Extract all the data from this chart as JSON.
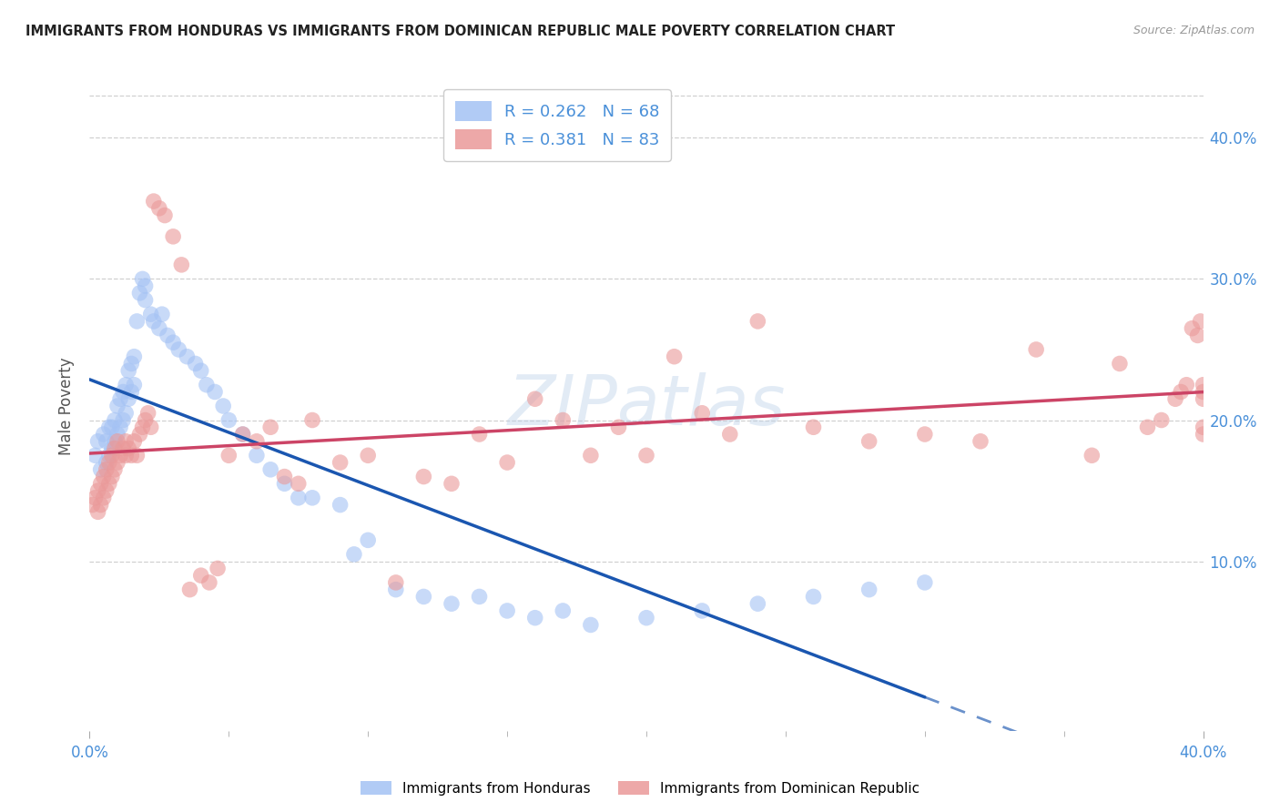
{
  "title": "IMMIGRANTS FROM HONDURAS VS IMMIGRANTS FROM DOMINICAN REPUBLIC MALE POVERTY CORRELATION CHART",
  "source": "Source: ZipAtlas.com",
  "ylabel": "Male Poverty",
  "watermark": "ZIPatlas",
  "xlim": [
    0.0,
    0.4
  ],
  "ylim": [
    -0.02,
    0.44
  ],
  "yticks": [
    0.1,
    0.2,
    0.3,
    0.4
  ],
  "ytick_labels": [
    "10.0%",
    "20.0%",
    "30.0%",
    "40.0%"
  ],
  "background_color": "#ffffff",
  "grid_color": "#d0d0d0",
  "tick_color": "#4a90d9",
  "honduras_color": "#a4c2f4",
  "dominican_color": "#ea9999",
  "trendline_honduras_color": "#1a56b0",
  "trendline_dominican_color": "#cc4466",
  "honduras_scatter": {
    "x": [
      0.002,
      0.003,
      0.004,
      0.005,
      0.006,
      0.006,
      0.007,
      0.007,
      0.008,
      0.008,
      0.009,
      0.009,
      0.01,
      0.01,
      0.011,
      0.011,
      0.012,
      0.012,
      0.013,
      0.013,
      0.014,
      0.014,
      0.015,
      0.015,
      0.016,
      0.016,
      0.017,
      0.018,
      0.019,
      0.02,
      0.02,
      0.022,
      0.023,
      0.025,
      0.026,
      0.028,
      0.03,
      0.032,
      0.035,
      0.038,
      0.04,
      0.042,
      0.045,
      0.048,
      0.05,
      0.055,
      0.06,
      0.065,
      0.07,
      0.075,
      0.08,
      0.09,
      0.095,
      0.1,
      0.11,
      0.12,
      0.13,
      0.14,
      0.15,
      0.16,
      0.17,
      0.18,
      0.2,
      0.22,
      0.24,
      0.26,
      0.28,
      0.3
    ],
    "y": [
      0.175,
      0.185,
      0.165,
      0.19,
      0.17,
      0.185,
      0.175,
      0.195,
      0.18,
      0.195,
      0.185,
      0.2,
      0.19,
      0.21,
      0.195,
      0.215,
      0.2,
      0.22,
      0.205,
      0.225,
      0.215,
      0.235,
      0.22,
      0.24,
      0.225,
      0.245,
      0.27,
      0.29,
      0.3,
      0.295,
      0.285,
      0.275,
      0.27,
      0.265,
      0.275,
      0.26,
      0.255,
      0.25,
      0.245,
      0.24,
      0.235,
      0.225,
      0.22,
      0.21,
      0.2,
      0.19,
      0.175,
      0.165,
      0.155,
      0.145,
      0.145,
      0.14,
      0.105,
      0.115,
      0.08,
      0.075,
      0.07,
      0.075,
      0.065,
      0.06,
      0.065,
      0.055,
      0.06,
      0.065,
      0.07,
      0.075,
      0.08,
      0.085
    ]
  },
  "dominican_scatter": {
    "x": [
      0.001,
      0.002,
      0.003,
      0.003,
      0.004,
      0.004,
      0.005,
      0.005,
      0.006,
      0.006,
      0.007,
      0.007,
      0.008,
      0.008,
      0.009,
      0.009,
      0.01,
      0.01,
      0.011,
      0.012,
      0.013,
      0.013,
      0.014,
      0.015,
      0.016,
      0.017,
      0.018,
      0.019,
      0.02,
      0.021,
      0.022,
      0.023,
      0.025,
      0.027,
      0.03,
      0.033,
      0.036,
      0.04,
      0.043,
      0.046,
      0.05,
      0.055,
      0.06,
      0.065,
      0.07,
      0.075,
      0.08,
      0.09,
      0.1,
      0.11,
      0.12,
      0.13,
      0.14,
      0.15,
      0.16,
      0.17,
      0.18,
      0.19,
      0.2,
      0.21,
      0.22,
      0.23,
      0.24,
      0.26,
      0.28,
      0.3,
      0.32,
      0.34,
      0.36,
      0.37,
      0.38,
      0.385,
      0.39,
      0.392,
      0.394,
      0.396,
      0.398,
      0.399,
      0.4,
      0.4,
      0.4,
      0.4,
      0.4
    ],
    "y": [
      0.14,
      0.145,
      0.135,
      0.15,
      0.14,
      0.155,
      0.145,
      0.16,
      0.15,
      0.165,
      0.155,
      0.17,
      0.16,
      0.175,
      0.165,
      0.18,
      0.17,
      0.185,
      0.175,
      0.18,
      0.175,
      0.185,
      0.18,
      0.175,
      0.185,
      0.175,
      0.19,
      0.195,
      0.2,
      0.205,
      0.195,
      0.355,
      0.35,
      0.345,
      0.33,
      0.31,
      0.08,
      0.09,
      0.085,
      0.095,
      0.175,
      0.19,
      0.185,
      0.195,
      0.16,
      0.155,
      0.2,
      0.17,
      0.175,
      0.085,
      0.16,
      0.155,
      0.19,
      0.17,
      0.215,
      0.2,
      0.175,
      0.195,
      0.175,
      0.245,
      0.205,
      0.19,
      0.27,
      0.195,
      0.185,
      0.19,
      0.185,
      0.25,
      0.175,
      0.24,
      0.195,
      0.2,
      0.215,
      0.22,
      0.225,
      0.265,
      0.26,
      0.27,
      0.19,
      0.195,
      0.215,
      0.22,
      0.225
    ]
  }
}
